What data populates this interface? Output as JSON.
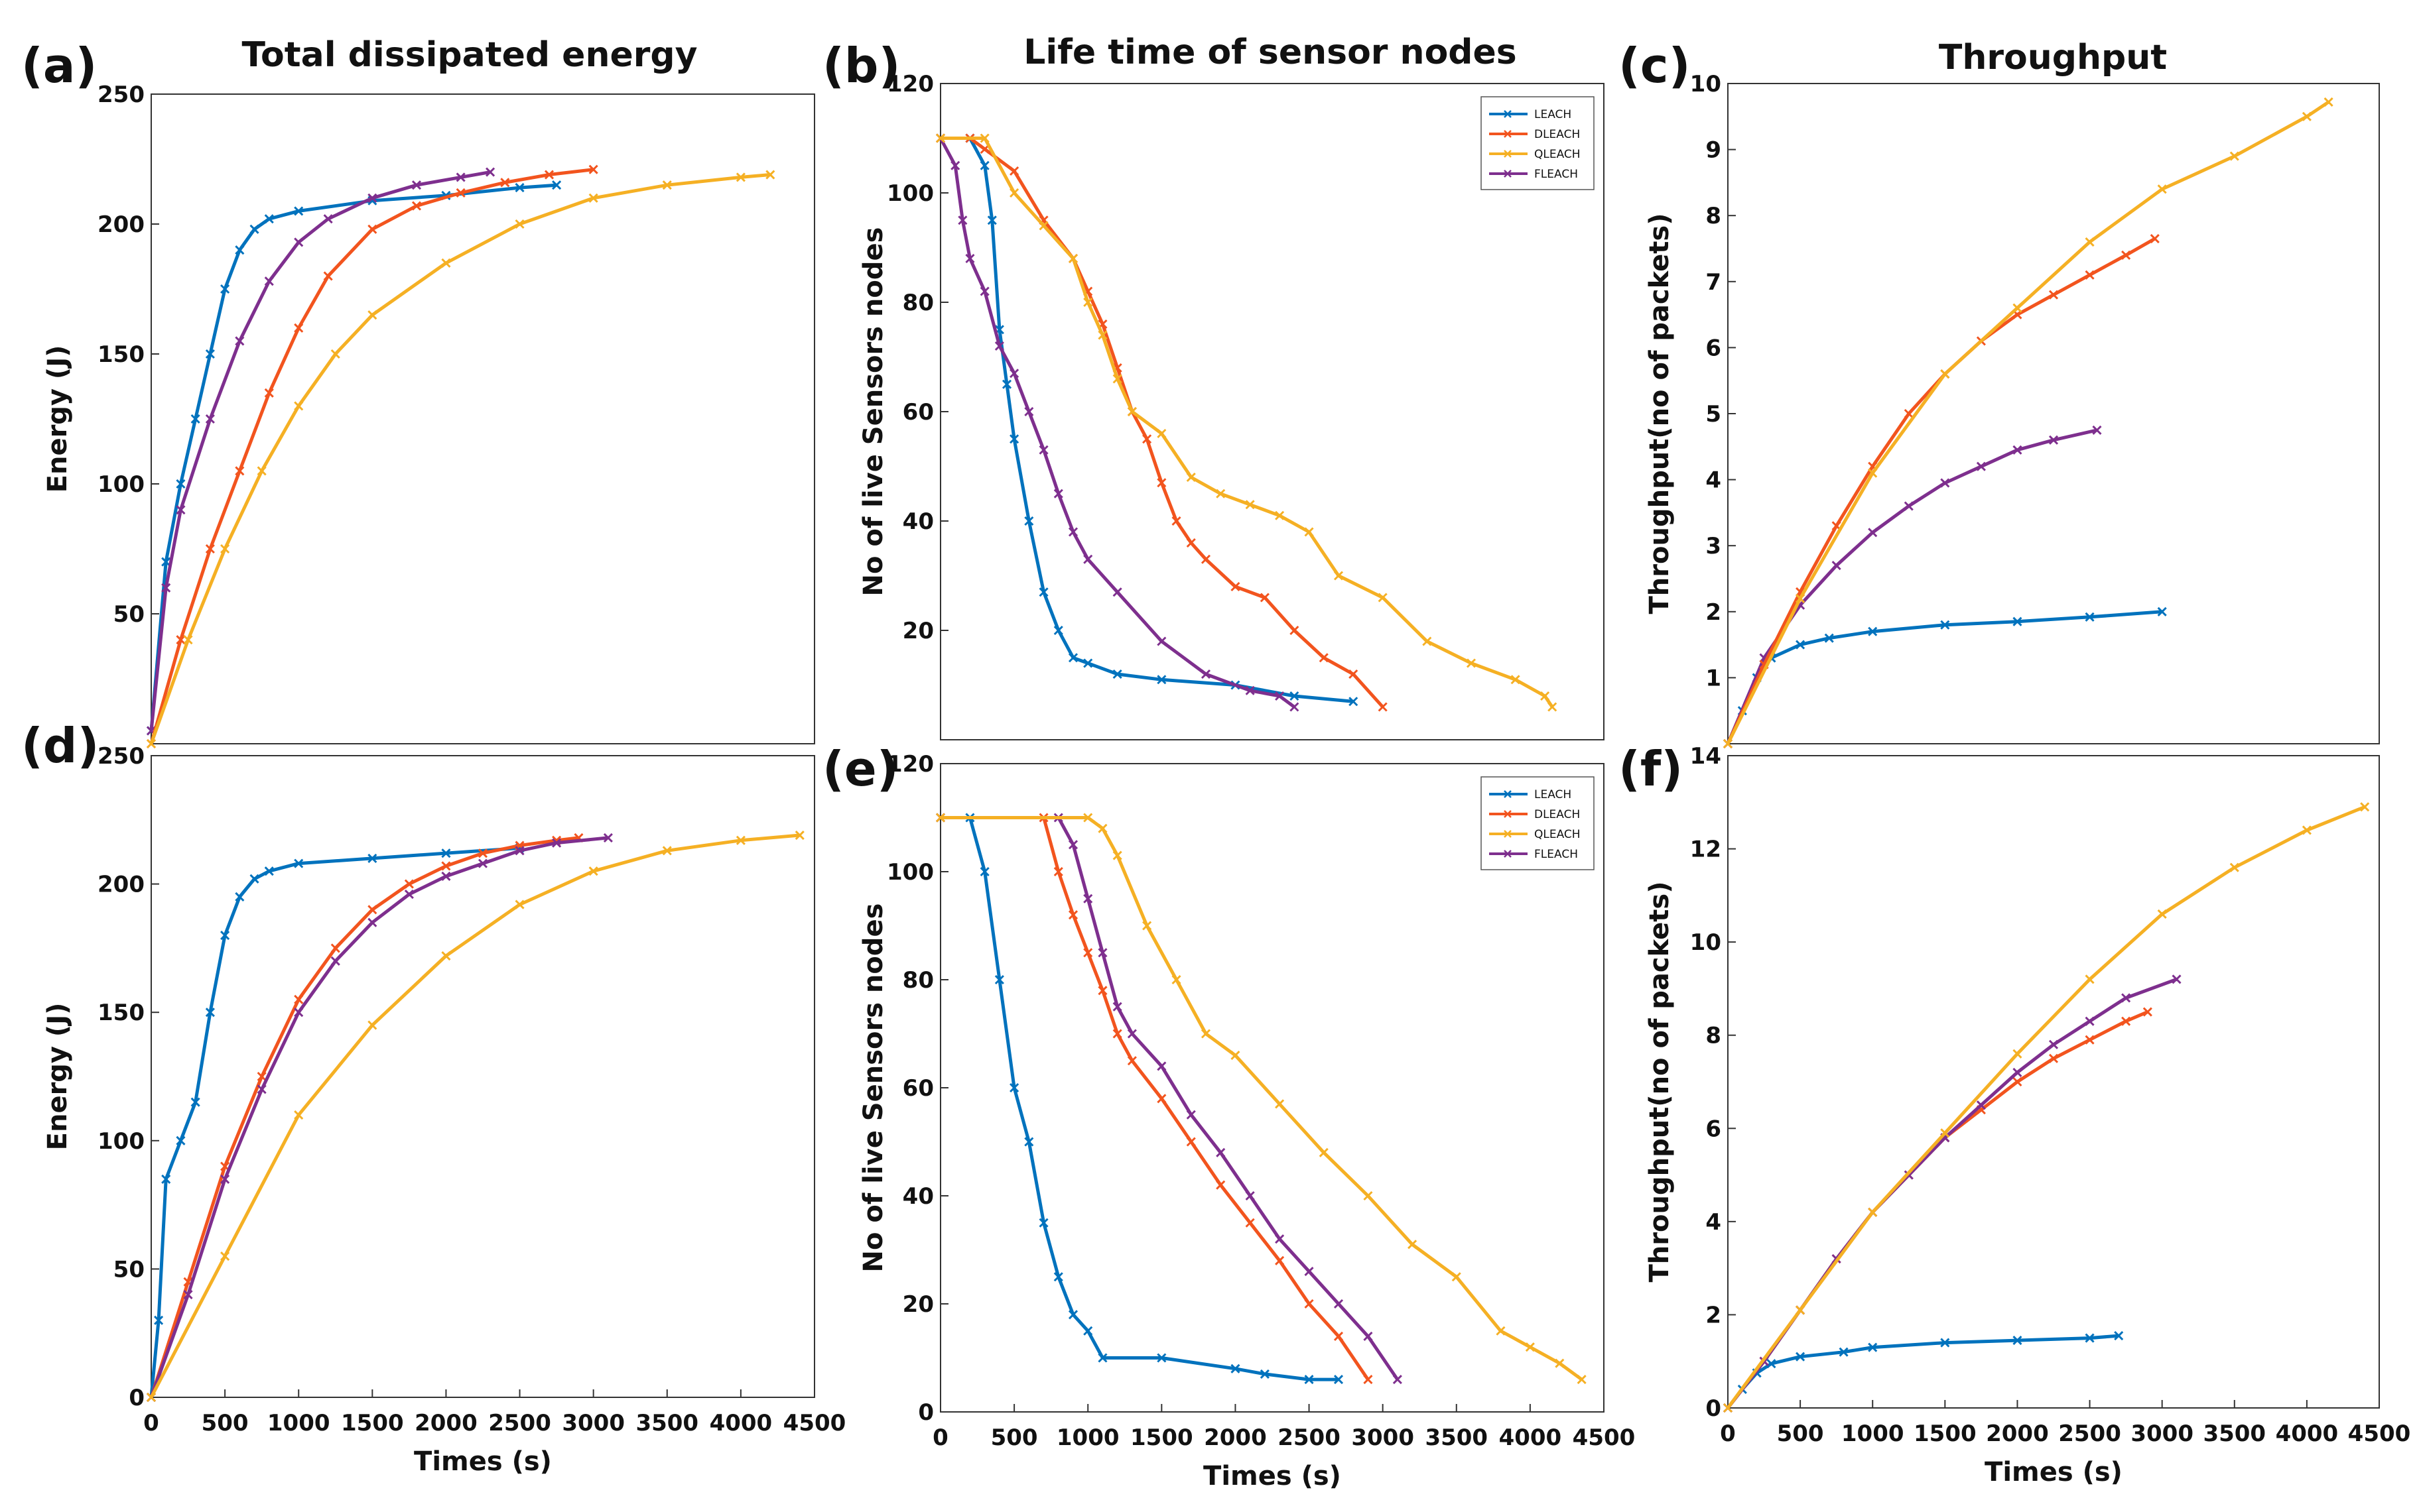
{
  "titles": [
    "Total dissipated energy",
    "Life time of sensor nodes",
    "Throughput"
  ],
  "colors": {
    "LEACH": "#0072BD",
    "DLEACH": "#F2541E",
    "QLEACH": "#F5B024",
    "FLEACH": "#7E2F8E"
  },
  "chart_data": [
    {
      "label": "(a)",
      "type": "line",
      "title": "Total dissipated energy",
      "xlabel": "",
      "ylabel": "Energy (J)",
      "xlim": [
        0,
        4500
      ],
      "ylim": [
        0,
        250
      ],
      "xticks": [],
      "yticks": [
        50,
        100,
        150,
        200,
        250
      ],
      "series": [
        {
          "name": "LEACH",
          "x": [
            0,
            100,
            200,
            300,
            400,
            500,
            600,
            700,
            800,
            1000,
            1500,
            2000,
            2500,
            2750
          ],
          "y": [
            5,
            70,
            100,
            125,
            150,
            175,
            190,
            198,
            202,
            205,
            209,
            211,
            214,
            215
          ]
        },
        {
          "name": "FLEACH",
          "x": [
            0,
            100,
            200,
            400,
            600,
            800,
            1000,
            1200,
            1500,
            1800,
            2100,
            2300
          ],
          "y": [
            5,
            60,
            90,
            125,
            155,
            178,
            193,
            202,
            210,
            215,
            218,
            220
          ]
        },
        {
          "name": "DLEACH",
          "x": [
            0,
            200,
            400,
            600,
            800,
            1000,
            1200,
            1500,
            1800,
            2100,
            2400,
            2700,
            3000
          ],
          "y": [
            0,
            40,
            75,
            105,
            135,
            160,
            180,
            198,
            207,
            212,
            216,
            219,
            221
          ]
        },
        {
          "name": "QLEACH",
          "x": [
            0,
            250,
            500,
            750,
            1000,
            1250,
            1500,
            2000,
            2500,
            3000,
            3500,
            4000,
            4200
          ],
          "y": [
            0,
            40,
            75,
            105,
            130,
            150,
            165,
            185,
            200,
            210,
            215,
            218,
            219
          ]
        }
      ]
    },
    {
      "label": "(b)",
      "type": "line",
      "title": "Life time of sensor nodes",
      "xlabel": "",
      "ylabel": "No of live Sensors nodes",
      "xlim": [
        0,
        4500
      ],
      "ylim": [
        0,
        120
      ],
      "xticks": [],
      "yticks": [
        20,
        40,
        60,
        80,
        100,
        120
      ],
      "legend": {
        "position": "top-right",
        "entries": [
          "LEACH",
          "DLEACH",
          "QLEACH",
          "FLEACH"
        ]
      },
      "series": [
        {
          "name": "LEACH",
          "x": [
            0,
            200,
            300,
            350,
            400,
            450,
            500,
            600,
            700,
            800,
            900,
            1000,
            1200,
            1500,
            2000,
            2400,
            2800
          ],
          "y": [
            110,
            110,
            105,
            95,
            75,
            65,
            55,
            40,
            27,
            20,
            15,
            14,
            12,
            11,
            10,
            8,
            7
          ]
        },
        {
          "name": "FLEACH",
          "x": [
            0,
            100,
            150,
            200,
            300,
            400,
            500,
            600,
            700,
            800,
            900,
            1000,
            1200,
            1500,
            1800,
            2100,
            2300,
            2400
          ],
          "y": [
            110,
            105,
            95,
            88,
            82,
            72,
            67,
            60,
            53,
            45,
            38,
            33,
            27,
            18,
            12,
            9,
            8,
            6
          ]
        },
        {
          "name": "DLEACH",
          "x": [
            0,
            200,
            300,
            500,
            700,
            900,
            1000,
            1100,
            1200,
            1300,
            1400,
            1500,
            1600,
            1700,
            1800,
            2000,
            2200,
            2400,
            2600,
            2800,
            3000
          ],
          "y": [
            110,
            110,
            108,
            104,
            95,
            88,
            82,
            76,
            68,
            60,
            55,
            47,
            40,
            36,
            33,
            28,
            26,
            20,
            15,
            12,
            6
          ]
        },
        {
          "name": "QLEACH",
          "x": [
            0,
            300,
            500,
            700,
            900,
            1000,
            1100,
            1200,
            1300,
            1500,
            1700,
            1900,
            2100,
            2300,
            2500,
            2700,
            3000,
            3300,
            3600,
            3900,
            4100,
            4150
          ],
          "y": [
            110,
            110,
            100,
            94,
            88,
            80,
            74,
            66,
            60,
            56,
            48,
            45,
            43,
            41,
            38,
            30,
            26,
            18,
            14,
            11,
            8,
            6
          ]
        }
      ]
    },
    {
      "label": "(c)",
      "type": "line",
      "title": "Throughput",
      "xlabel": "",
      "ylabel": "Throughput(no of packets)",
      "xlim": [
        0,
        4500
      ],
      "ylim": [
        0,
        10
      ],
      "xticks": [],
      "yticks": [
        1,
        2,
        3,
        4,
        5,
        6,
        7,
        8,
        9,
        10
      ],
      "series": [
        {
          "name": "LEACH",
          "x": [
            0,
            100,
            200,
            300,
            500,
            700,
            1000,
            1500,
            2000,
            2500,
            3000
          ],
          "y": [
            0,
            0.5,
            1.0,
            1.3,
            1.5,
            1.6,
            1.7,
            1.8,
            1.85,
            1.92,
            2.0
          ]
        },
        {
          "name": "FLEACH",
          "x": [
            0,
            250,
            500,
            750,
            1000,
            1250,
            1500,
            1750,
            2000,
            2250,
            2550
          ],
          "y": [
            0,
            1.3,
            2.1,
            2.7,
            3.2,
            3.6,
            3.95,
            4.2,
            4.45,
            4.6,
            4.75
          ]
        },
        {
          "name": "DLEACH",
          "x": [
            0,
            250,
            500,
            750,
            1000,
            1250,
            1500,
            1750,
            2000,
            2250,
            2500,
            2750,
            2950
          ],
          "y": [
            0,
            1.2,
            2.3,
            3.3,
            4.2,
            5.0,
            5.6,
            6.1,
            6.5,
            6.8,
            7.1,
            7.4,
            7.65
          ]
        },
        {
          "name": "QLEACH",
          "x": [
            0,
            500,
            1000,
            1500,
            2000,
            2500,
            3000,
            3500,
            4000,
            4150
          ],
          "y": [
            0,
            2.2,
            4.1,
            5.6,
            6.6,
            7.6,
            8.4,
            8.9,
            9.5,
            9.72
          ]
        }
      ]
    },
    {
      "label": "(d)",
      "type": "line",
      "title": "",
      "xlabel": "Times (s)",
      "ylabel": "Energy (J)",
      "xlim": [
        0,
        4500
      ],
      "ylim": [
        0,
        250
      ],
      "xticks": [
        0,
        500,
        1000,
        1500,
        2000,
        2500,
        3000,
        3500,
        4000,
        4500
      ],
      "yticks": [
        0,
        50,
        100,
        150,
        200,
        250
      ],
      "series": [
        {
          "name": "LEACH",
          "x": [
            0,
            50,
            100,
            200,
            300,
            400,
            500,
            600,
            700,
            800,
            1000,
            1500,
            2000,
            2500
          ],
          "y": [
            0,
            30,
            85,
            100,
            115,
            150,
            180,
            195,
            202,
            205,
            208,
            210,
            212,
            214
          ]
        },
        {
          "name": "DLEACH",
          "x": [
            0,
            250,
            500,
            750,
            1000,
            1250,
            1500,
            1750,
            2000,
            2250,
            2500,
            2750,
            2900
          ],
          "y": [
            0,
            45,
            90,
            125,
            155,
            175,
            190,
            200,
            207,
            212,
            215,
            217,
            218
          ]
        },
        {
          "name": "FLEACH",
          "x": [
            0,
            250,
            500,
            750,
            1000,
            1250,
            1500,
            1750,
            2000,
            2250,
            2500,
            2750,
            3100
          ],
          "y": [
            0,
            40,
            85,
            120,
            150,
            170,
            185,
            196,
            203,
            208,
            213,
            216,
            218
          ]
        },
        {
          "name": "QLEACH",
          "x": [
            0,
            500,
            1000,
            1500,
            2000,
            2500,
            3000,
            3500,
            4000,
            4400
          ],
          "y": [
            0,
            55,
            110,
            145,
            172,
            192,
            205,
            213,
            217,
            219
          ]
        }
      ]
    },
    {
      "label": "(e)",
      "type": "line",
      "title": "",
      "xlabel": "Times (s)",
      "ylabel": "No of live Sensors nodes",
      "xlim": [
        0,
        4500
      ],
      "ylim": [
        0,
        120
      ],
      "xticks": [
        0,
        500,
        1000,
        1500,
        2000,
        2500,
        3000,
        3500,
        4000,
        4500
      ],
      "yticks": [
        0,
        20,
        40,
        60,
        80,
        100,
        120
      ],
      "legend": {
        "position": "top-right",
        "entries": [
          "LEACH",
          "DLEACH",
          "QLEACH",
          "FLEACH"
        ]
      },
      "series": [
        {
          "name": "LEACH",
          "x": [
            0,
            200,
            300,
            400,
            500,
            600,
            700,
            800,
            900,
            1000,
            1100,
            1500,
            2000,
            2200,
            2500,
            2700
          ],
          "y": [
            110,
            110,
            100,
            80,
            60,
            50,
            35,
            25,
            18,
            15,
            10,
            10,
            8,
            7,
            6,
            6
          ]
        },
        {
          "name": "DLEACH",
          "x": [
            0,
            700,
            800,
            900,
            1000,
            1100,
            1200,
            1300,
            1500,
            1700,
            1900,
            2100,
            2300,
            2500,
            2700,
            2900
          ],
          "y": [
            110,
            110,
            100,
            92,
            85,
            78,
            70,
            65,
            58,
            50,
            42,
            35,
            28,
            20,
            14,
            6
          ]
        },
        {
          "name": "FLEACH",
          "x": [
            0,
            800,
            900,
            1000,
            1100,
            1200,
            1300,
            1500,
            1700,
            1900,
            2100,
            2300,
            2500,
            2700,
            2900,
            3100
          ],
          "y": [
            110,
            110,
            105,
            95,
            85,
            75,
            70,
            64,
            55,
            48,
            40,
            32,
            26,
            20,
            14,
            6
          ]
        },
        {
          "name": "QLEACH",
          "x": [
            0,
            1000,
            1100,
            1200,
            1400,
            1600,
            1800,
            2000,
            2300,
            2600,
            2900,
            3200,
            3500,
            3800,
            4000,
            4200,
            4350
          ],
          "y": [
            110,
            110,
            108,
            103,
            90,
            80,
            70,
            66,
            57,
            48,
            40,
            31,
            25,
            15,
            12,
            9,
            6
          ]
        }
      ]
    },
    {
      "label": "(f)",
      "type": "line",
      "title": "",
      "xlabel": "Times (s)",
      "ylabel": "Throughput(no of packets)",
      "xlim": [
        0,
        4500
      ],
      "ylim": [
        0,
        14
      ],
      "xticks": [
        0,
        500,
        1000,
        1500,
        2000,
        2500,
        3000,
        3500,
        4000,
        4500
      ],
      "yticks": [
        0,
        2,
        4,
        6,
        8,
        10,
        12,
        14
      ],
      "series": [
        {
          "name": "LEACH",
          "x": [
            0,
            100,
            200,
            300,
            500,
            800,
            1000,
            1500,
            2000,
            2500,
            2700
          ],
          "y": [
            0,
            0.4,
            0.75,
            0.95,
            1.1,
            1.2,
            1.3,
            1.4,
            1.45,
            1.5,
            1.55
          ]
        },
        {
          "name": "DLEACH",
          "x": [
            0,
            250,
            500,
            750,
            1000,
            1250,
            1500,
            1750,
            2000,
            2250,
            2500,
            2750,
            2900
          ],
          "y": [
            0,
            1.0,
            2.1,
            3.2,
            4.2,
            5.0,
            5.8,
            6.4,
            7.0,
            7.5,
            7.9,
            8.3,
            8.5
          ]
        },
        {
          "name": "FLEACH",
          "x": [
            0,
            250,
            500,
            750,
            1000,
            1250,
            1500,
            1750,
            2000,
            2250,
            2500,
            2750,
            3100
          ],
          "y": [
            0,
            1.0,
            2.1,
            3.2,
            4.2,
            5.0,
            5.8,
            6.5,
            7.2,
            7.8,
            8.3,
            8.8,
            9.2
          ]
        },
        {
          "name": "QLEACH",
          "x": [
            0,
            500,
            1000,
            1500,
            2000,
            2500,
            3000,
            3500,
            4000,
            4400
          ],
          "y": [
            0,
            2.1,
            4.2,
            5.9,
            7.6,
            9.2,
            10.6,
            11.6,
            12.4,
            12.9
          ]
        }
      ]
    }
  ]
}
